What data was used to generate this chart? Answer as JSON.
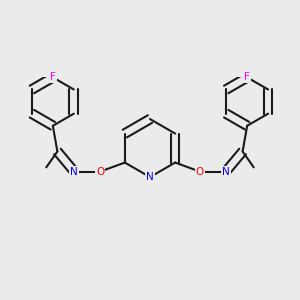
{
  "bg": "#EBEBEB",
  "bc": "#1a1a1a",
  "nc": "#0000FF",
  "oc": "#FF0000",
  "fc": "#FF00FF",
  "lw": 1.5,
  "dbo": 0.045,
  "xlim": [
    -1.55,
    1.55
  ],
  "ylim": [
    -0.75,
    0.75
  ],
  "figsize": [
    3.0,
    3.0
  ],
  "dpi": 100
}
